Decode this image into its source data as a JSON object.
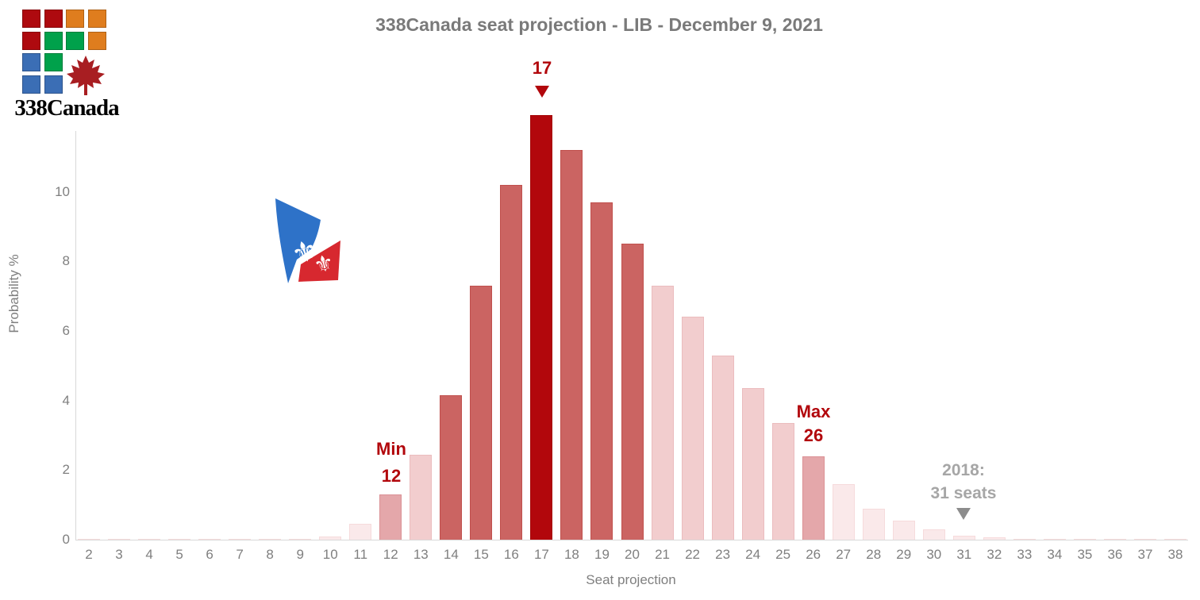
{
  "logo": {
    "brand": "338Canada",
    "grid": [
      [
        "red",
        "red",
        "orange",
        "orange"
      ],
      [
        "red",
        "green",
        "green",
        "orange"
      ],
      [
        "blue",
        "green",
        null,
        null
      ],
      [
        "blue",
        "blue",
        null,
        null
      ]
    ],
    "colors": {
      "red": "#ae0a0f",
      "orange": "#df7d1e",
      "green": "#00a14b",
      "blue": "#3b6eb5",
      "leaf": "#a81e22"
    }
  },
  "chart_data": {
    "type": "bar",
    "title": "338Canada seat projection - LIB - December 9, 2021",
    "xlabel": "Seat projection",
    "ylabel": "Probability %",
    "x": [
      2,
      3,
      4,
      5,
      6,
      7,
      8,
      9,
      10,
      11,
      12,
      13,
      14,
      15,
      16,
      17,
      18,
      19,
      20,
      21,
      22,
      23,
      24,
      25,
      26,
      27,
      28,
      29,
      30,
      31,
      32,
      33,
      34,
      35,
      36,
      37,
      38
    ],
    "values": [
      0.02,
      0.02,
      0.02,
      0.02,
      0.02,
      0.02,
      0.02,
      0.03,
      0.1,
      0.45,
      1.3,
      2.45,
      4.15,
      7.3,
      10.2,
      12.2,
      11.2,
      9.7,
      8.5,
      7.3,
      6.4,
      5.3,
      4.35,
      3.35,
      2.4,
      1.6,
      0.9,
      0.55,
      0.3,
      0.12,
      0.06,
      0.02,
      0.02,
      0.02,
      0.02,
      0.02,
      0.02
    ],
    "bands": [
      "outside",
      "outside",
      "outside",
      "outside",
      "outside",
      "outside",
      "outside",
      "outside",
      "outside",
      "outside",
      "minmax",
      "ci95",
      "ci50",
      "ci50",
      "ci50",
      "peak",
      "ci50",
      "ci50",
      "ci50",
      "ci95",
      "ci95",
      "ci95",
      "ci95",
      "ci95",
      "minmax",
      "outside",
      "outside",
      "outside",
      "outside",
      "outside",
      "outside",
      "outside",
      "outside",
      "outside",
      "outside",
      "outside",
      "outside"
    ],
    "yticks": [
      0,
      2,
      4,
      6,
      8,
      10
    ],
    "ylim": [
      0,
      11.75
    ],
    "grid": "off",
    "legend": "none",
    "annotations": {
      "peak": {
        "label": "17",
        "seat": 17
      },
      "min": {
        "line1": "Min",
        "line2": "12",
        "seat": 12
      },
      "max": {
        "line1": "Max",
        "line2": "26",
        "seat": 26
      },
      "prev": {
        "line1": "2018:",
        "line2": "31 seats",
        "seat": 31
      }
    }
  },
  "band_colors": {
    "peak": {
      "fill": "#b2070c",
      "border": "#a50909"
    },
    "ci50": {
      "fill": "#cb6462",
      "border": "#c0504d"
    },
    "minmax": {
      "fill": "#e4a7aa",
      "border": "#db9195"
    },
    "ci95": {
      "fill": "#f2cdce",
      "border": "#ebbcbe"
    },
    "outside": {
      "fill": "#fae9ea",
      "border": "#f6dbdc"
    }
  },
  "annotation_colors": {
    "red": "#b2070c",
    "gray": "#a6a6a6",
    "gray_arrow": "#8c8c8c"
  }
}
